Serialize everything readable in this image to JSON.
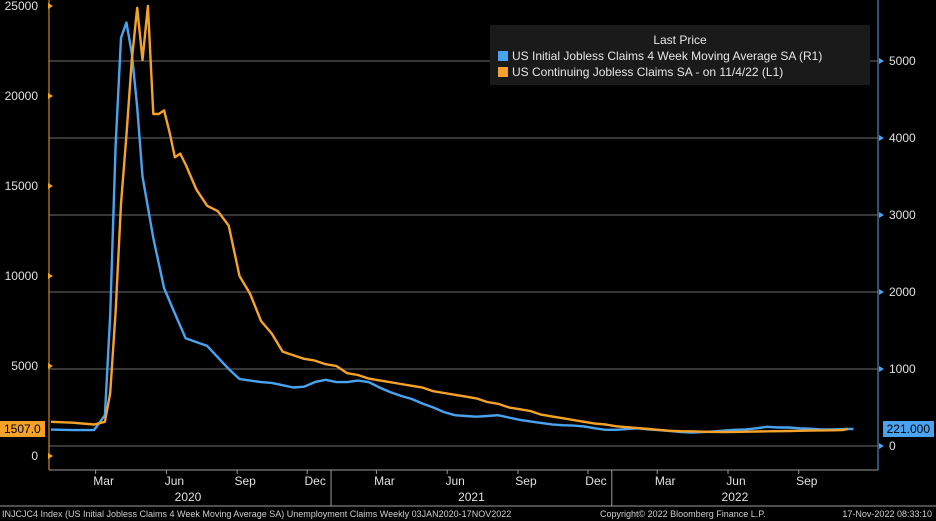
{
  "chart_data": {
    "type": "line",
    "x_axis": {
      "month_ticks": [
        "Mar",
        "Jun",
        "Sep",
        "Dec",
        "Mar",
        "Jun",
        "Sep",
        "Dec",
        "Mar",
        "Jun",
        "Sep"
      ],
      "year_labels": [
        "2020",
        "2021",
        "2022"
      ]
    },
    "left_axis": {
      "ticks": [
        0,
        5000,
        10000,
        15000,
        20000,
        25000
      ],
      "range": [
        -500,
        25500
      ]
    },
    "right_axis": {
      "ticks": [
        0,
        1000,
        2000,
        3000,
        4000,
        5000
      ],
      "range": [
        -50,
        5650
      ]
    },
    "grid": true,
    "series": [
      {
        "name": "US Initial Jobless Claims 4 Week Moving Average SA  (R1)",
        "color": "#4aa3f0",
        "axis": "right",
        "x": [
          "2020-01-03",
          "2020-01-31",
          "2020-02-28",
          "2020-03-13",
          "2020-03-20",
          "2020-03-27",
          "2020-04-03",
          "2020-04-10",
          "2020-04-17",
          "2020-04-24",
          "2020-05-01",
          "2020-05-15",
          "2020-05-29",
          "2020-06-12",
          "2020-06-26",
          "2020-07-10",
          "2020-07-24",
          "2020-08-07",
          "2020-08-21",
          "2020-09-04",
          "2020-09-18",
          "2020-10-02",
          "2020-10-16",
          "2020-10-30",
          "2020-11-13",
          "2020-11-27",
          "2020-12-11",
          "2020-12-25",
          "2021-01-08",
          "2021-01-22",
          "2021-02-05",
          "2021-02-19",
          "2021-03-05",
          "2021-03-19",
          "2021-04-02",
          "2021-04-16",
          "2021-04-30",
          "2021-05-14",
          "2021-05-28",
          "2021-06-11",
          "2021-06-25",
          "2021-07-09",
          "2021-07-23",
          "2021-08-06",
          "2021-08-20",
          "2021-09-03",
          "2021-09-17",
          "2021-10-01",
          "2021-10-15",
          "2021-10-29",
          "2021-11-12",
          "2021-11-26",
          "2021-12-10",
          "2021-12-24",
          "2022-01-07",
          "2022-01-21",
          "2022-02-04",
          "2022-02-18",
          "2022-03-04",
          "2022-03-18",
          "2022-04-01",
          "2022-04-15",
          "2022-04-29",
          "2022-05-13",
          "2022-05-27",
          "2022-06-10",
          "2022-06-24",
          "2022-07-08",
          "2022-07-22",
          "2022-08-05",
          "2022-08-19",
          "2022-09-02",
          "2022-09-16",
          "2022-09-30",
          "2022-10-14",
          "2022-10-28",
          "2022-11-11"
        ],
        "values": [
          213,
          207,
          208,
          400,
          1700,
          3900,
          5300,
          5500,
          5100,
          4400,
          3500,
          2700,
          2050,
          1720,
          1400,
          1350,
          1300,
          1150,
          1000,
          870,
          850,
          830,
          820,
          790,
          760,
          770,
          830,
          860,
          830,
          830,
          850,
          830,
          760,
          700,
          650,
          610,
          550,
          500,
          440,
          400,
          390,
          380,
          390,
          400,
          370,
          340,
          320,
          300,
          280,
          270,
          265,
          255,
          230,
          210,
          210,
          220,
          230,
          215,
          205,
          195,
          180,
          175,
          180,
          190,
          200,
          210,
          215,
          230,
          250,
          240,
          240,
          230,
          225,
          215,
          215,
          220,
          221
        ]
      },
      {
        "name": "US Continuing Jobless Claims SA -  on 11/4/22  (L1)",
        "color": "#f5a22a",
        "axis": "left",
        "x": [
          "2020-01-03",
          "2020-01-31",
          "2020-02-28",
          "2020-03-13",
          "2020-03-20",
          "2020-03-27",
          "2020-04-03",
          "2020-04-10",
          "2020-04-17",
          "2020-04-24",
          "2020-05-01",
          "2020-05-08",
          "2020-05-15",
          "2020-05-22",
          "2020-05-29",
          "2020-06-05",
          "2020-06-12",
          "2020-06-19",
          "2020-06-26",
          "2020-07-03",
          "2020-07-10",
          "2020-07-24",
          "2020-08-07",
          "2020-08-21",
          "2020-09-04",
          "2020-09-18",
          "2020-10-02",
          "2020-10-16",
          "2020-10-30",
          "2020-11-13",
          "2020-11-27",
          "2020-12-11",
          "2020-12-25",
          "2021-01-08",
          "2021-01-22",
          "2021-02-05",
          "2021-02-19",
          "2021-03-05",
          "2021-03-19",
          "2021-04-02",
          "2021-04-16",
          "2021-04-30",
          "2021-05-14",
          "2021-05-28",
          "2021-06-11",
          "2021-06-25",
          "2021-07-09",
          "2021-07-23",
          "2021-08-06",
          "2021-08-20",
          "2021-09-03",
          "2021-09-17",
          "2021-10-01",
          "2021-10-15",
          "2021-10-29",
          "2021-11-12",
          "2021-11-26",
          "2021-12-10",
          "2021-12-24",
          "2022-01-07",
          "2022-01-21",
          "2022-02-04",
          "2022-02-18",
          "2022-03-04",
          "2022-03-18",
          "2022-04-01",
          "2022-04-15",
          "2022-04-29",
          "2022-05-13",
          "2022-05-27",
          "2022-06-10",
          "2022-06-24",
          "2022-07-08",
          "2022-07-22",
          "2022-08-05",
          "2022-08-19",
          "2022-09-02",
          "2022-09-16",
          "2022-09-30",
          "2022-10-14",
          "2022-10-28",
          "2022-11-04"
        ],
        "values": [
          1900,
          1850,
          1750,
          1900,
          3500,
          8000,
          14000,
          17800,
          22000,
          24900,
          22000,
          25000,
          19000,
          19000,
          19200,
          18000,
          16600,
          16800,
          16200,
          15500,
          14800,
          13900,
          13600,
          12800,
          10000,
          9000,
          7500,
          6800,
          5800,
          5600,
          5400,
          5300,
          5100,
          5000,
          4600,
          4500,
          4300,
          4200,
          4100,
          4000,
          3900,
          3800,
          3600,
          3500,
          3400,
          3300,
          3200,
          3000,
          2900,
          2700,
          2600,
          2500,
          2300,
          2200,
          2100,
          2000,
          1900,
          1800,
          1750,
          1650,
          1600,
          1550,
          1500,
          1450,
          1400,
          1380,
          1370,
          1350,
          1340,
          1330,
          1340,
          1350,
          1360,
          1370,
          1380,
          1390,
          1400,
          1410,
          1420,
          1430,
          1440,
          1507
        ]
      }
    ],
    "last_values": {
      "left": "1507.0",
      "right": "221.000"
    }
  },
  "legend": {
    "title": "Last Price",
    "entries": [
      "US Initial Jobless Claims 4 Week Moving Average SA  (R1)",
      "US Continuing Jobless Claims SA -  on 11/4/22  (L1)"
    ]
  },
  "footer": {
    "left": "INJCJC4 Index (US Initial Jobless Claims 4 Week Moving Average SA) Unemployment Claims  Weekly 03JAN2020-17NOV2022",
    "middle": "Copyright© 2022 Bloomberg Finance L.P.",
    "right": "17-Nov-2022 08:33:10"
  }
}
